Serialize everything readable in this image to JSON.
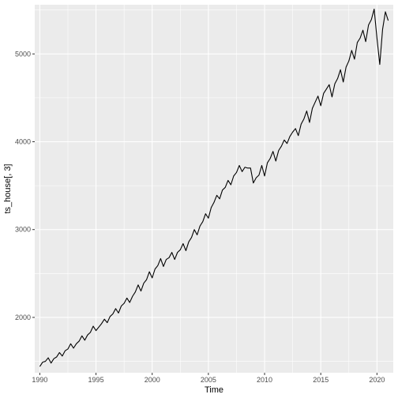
{
  "chart_data": {
    "type": "line",
    "xlabel": "Time",
    "ylabel": "ts_house[, 3]",
    "xlim": [
      1989.55,
      2021.45
    ],
    "ylim": [
      1370,
      5560
    ],
    "x_ticks": [
      1990,
      1995,
      2000,
      2005,
      2010,
      2015,
      2020
    ],
    "y_ticks": [
      2000,
      3000,
      4000,
      5000
    ],
    "x_tick_labels": [
      "1990",
      "1995",
      "2000",
      "2005",
      "2010",
      "2015",
      "2020"
    ],
    "y_tick_labels": [
      "2000",
      "3000",
      "4000",
      "5000"
    ],
    "grid": true,
    "colors": {
      "panel": "#ebebeb",
      "grid_major": "#ffffff",
      "line": "#000000",
      "tick_label": "#4d4d4d"
    },
    "series": [
      {
        "x": [
          1990.0,
          1990.25,
          1990.5,
          1990.75,
          1991.0,
          1991.25,
          1991.5,
          1991.75,
          1992.0,
          1992.25,
          1992.5,
          1992.75,
          1993.0,
          1993.25,
          1993.5,
          1993.75,
          1994.0,
          1994.25,
          1994.5,
          1994.75,
          1995.0,
          1995.25,
          1995.5,
          1995.75,
          1996.0,
          1996.25,
          1996.5,
          1996.75,
          1997.0,
          1997.25,
          1997.5,
          1997.75,
          1998.0,
          1998.25,
          1998.5,
          1998.75,
          1999.0,
          1999.25,
          1999.5,
          1999.75,
          2000.0,
          2000.25,
          2000.5,
          2000.75,
          2001.0,
          2001.25,
          2001.5,
          2001.75,
          2002.0,
          2002.25,
          2002.5,
          2002.75,
          2003.0,
          2003.25,
          2003.5,
          2003.75,
          2004.0,
          2004.25,
          2004.5,
          2004.75,
          2005.0,
          2005.25,
          2005.5,
          2005.75,
          2006.0,
          2006.25,
          2006.5,
          2006.75,
          2007.0,
          2007.25,
          2007.5,
          2007.75,
          2008.0,
          2008.25,
          2008.5,
          2008.75,
          2009.0,
          2009.25,
          2009.5,
          2009.75,
          2010.0,
          2010.25,
          2010.5,
          2010.75,
          2011.0,
          2011.25,
          2011.5,
          2011.75,
          2012.0,
          2012.25,
          2012.5,
          2012.75,
          2013.0,
          2013.25,
          2013.5,
          2013.75,
          2014.0,
          2014.25,
          2014.5,
          2014.75,
          2015.0,
          2015.25,
          2015.5,
          2015.75,
          2016.0,
          2016.25,
          2016.5,
          2016.75,
          2017.0,
          2017.25,
          2017.5,
          2017.75,
          2018.0,
          2018.25,
          2018.5,
          2018.75,
          2019.0,
          2019.25,
          2019.5,
          2019.75,
          2020.0,
          2020.25,
          2020.5,
          2020.75,
          2021.0
        ],
        "values": [
          1440,
          1490,
          1500,
          1540,
          1480,
          1530,
          1550,
          1600,
          1560,
          1620,
          1640,
          1700,
          1650,
          1700,
          1730,
          1790,
          1740,
          1800,
          1830,
          1900,
          1850,
          1890,
          1930,
          1980,
          1940,
          2010,
          2040,
          2100,
          2050,
          2130,
          2160,
          2220,
          2170,
          2240,
          2290,
          2370,
          2300,
          2390,
          2430,
          2520,
          2450,
          2550,
          2590,
          2670,
          2580,
          2660,
          2680,
          2740,
          2660,
          2740,
          2770,
          2840,
          2760,
          2860,
          2910,
          3000,
          2940,
          3040,
          3090,
          3180,
          3130,
          3250,
          3310,
          3390,
          3350,
          3450,
          3480,
          3560,
          3510,
          3610,
          3650,
          3730,
          3660,
          3710,
          3700,
          3700,
          3530,
          3590,
          3620,
          3730,
          3610,
          3760,
          3810,
          3890,
          3780,
          3900,
          3950,
          4020,
          3980,
          4060,
          4110,
          4150,
          4070,
          4200,
          4260,
          4350,
          4220,
          4380,
          4450,
          4520,
          4410,
          4550,
          4600,
          4650,
          4510,
          4660,
          4720,
          4820,
          4680,
          4850,
          4920,
          5040,
          4940,
          5130,
          5180,
          5270,
          5140,
          5330,
          5390,
          5510,
          5180,
          4880,
          5280,
          5480,
          5380
        ]
      }
    ]
  }
}
